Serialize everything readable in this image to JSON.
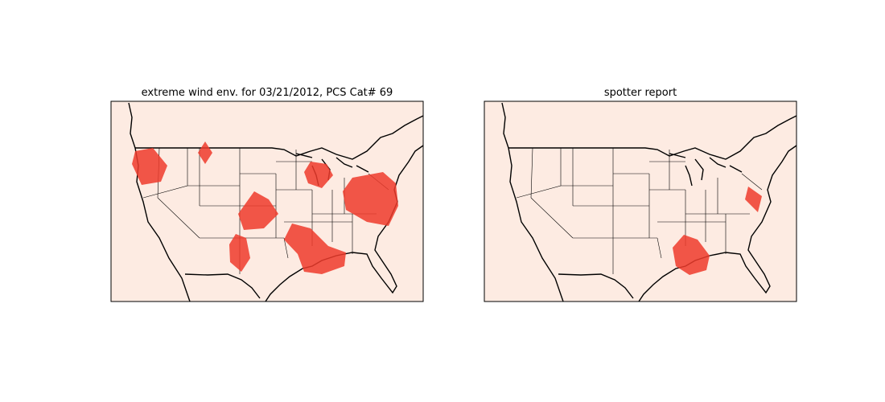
{
  "panels": [
    {
      "title": "extreme wind env. for 03/21/2012, PCS Cat# 69"
    },
    {
      "title": "spotter report"
    }
  ]
}
